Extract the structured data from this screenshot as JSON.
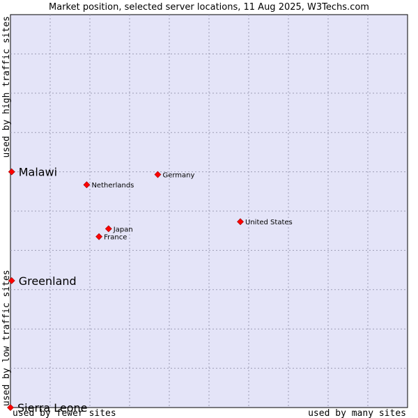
{
  "title": "Market position, selected server locations, 11 Aug 2025, W3Techs.com",
  "xlabel_left": "used by fewer sites",
  "xlabel_right": "used by many sites",
  "ylabel_top": "used by high traffic sites",
  "ylabel_bottom": "used by low traffic sites",
  "colors": {
    "plot_bg": "#e4e4f8",
    "marker": "#ff0000",
    "grid": "#9c9cb4"
  },
  "chart_data": {
    "type": "scatter",
    "title": "Market position, selected server locations, 11 Aug 2025, W3Techs.com",
    "xlim": [
      0,
      100
    ],
    "ylim": [
      0,
      100
    ],
    "grid": true,
    "points": [
      {
        "name": "Malawi",
        "x": 0.3,
        "y": 60.0,
        "label_size": "large"
      },
      {
        "name": "Greenland",
        "x": 0.3,
        "y": 32.3,
        "label_size": "large"
      },
      {
        "name": "Sierra Leone",
        "x": 0.0,
        "y": 0.0,
        "label_size": "large"
      },
      {
        "name": "Germany",
        "x": 37.1,
        "y": 59.3,
        "label_size": "small"
      },
      {
        "name": "Netherlands",
        "x": 19.2,
        "y": 56.7,
        "label_size": "small"
      },
      {
        "name": "United States",
        "x": 57.9,
        "y": 47.3,
        "label_size": "small"
      },
      {
        "name": "Japan",
        "x": 24.7,
        "y": 45.5,
        "label_size": "small"
      },
      {
        "name": "France",
        "x": 22.3,
        "y": 43.5,
        "label_size": "small"
      }
    ]
  }
}
